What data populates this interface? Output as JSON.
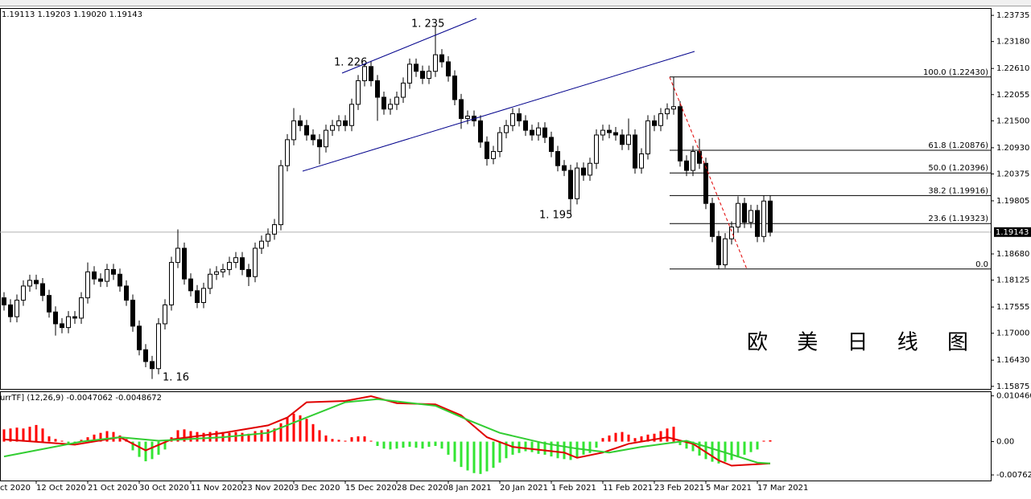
{
  "chart_data": [
    {
      "type": "candlestick",
      "ohlc_text": "1.19113 1.19203 1.19020 1.19143",
      "title": "欧 美 日 线 图",
      "annotations": [
        "1. 235",
        "1. 226",
        "1. 195",
        "1. 16"
      ],
      "up_color": "#ffffff",
      "down_color": "#000000",
      "open": [
        1.1775,
        1.176,
        1.1735,
        1.177,
        1.18,
        1.1812,
        1.1805,
        1.178,
        1.1745,
        1.172,
        1.1712,
        1.1735,
        1.1732,
        1.1775,
        1.183,
        1.1815,
        1.181,
        1.1835,
        1.1825,
        1.18,
        1.177,
        1.1715,
        1.1665,
        1.164,
        1.1625,
        1.172,
        1.176,
        1.185,
        1.188,
        1.1815,
        1.179,
        1.1765,
        1.1795,
        1.1825,
        1.183,
        1.1835,
        1.185,
        1.186,
        1.1835,
        1.182,
        1.188,
        1.1895,
        1.191,
        1.193,
        1.2055,
        1.211,
        1.215,
        1.214,
        1.212,
        1.211,
        1.2095,
        1.213,
        1.214,
        1.215,
        1.214,
        1.2185,
        1.2235,
        1.2265,
        1.2235,
        1.22,
        1.2175,
        1.2185,
        1.22,
        1.223,
        1.227,
        1.2255,
        1.224,
        1.2255,
        1.229,
        1.2275,
        1.2245,
        1.2195,
        1.2155,
        1.216,
        1.215,
        1.2105,
        1.207,
        1.2085,
        1.2125,
        1.214,
        1.2165,
        1.215,
        1.213,
        1.212,
        1.2135,
        1.2115,
        1.2085,
        1.2055,
        1.2045,
        1.1985,
        1.205,
        1.2035,
        1.206,
        1.212,
        1.213,
        1.2125,
        1.212,
        1.21,
        1.212,
        1.205,
        1.208,
        1.215,
        1.214,
        1.2165,
        1.2175,
        1.218,
        1.2065,
        1.2045,
        1.2085,
        1.206,
        1.1975,
        1.1905,
        1.1845,
        1.19,
        1.1925,
        1.1975,
        1.1935,
        1.196,
        1.1905,
        1.198
      ],
      "high": [
        1.1787,
        1.1772,
        1.1782,
        1.1812,
        1.1824,
        1.1824,
        1.1817,
        1.1792,
        1.1757,
        1.1732,
        1.1747,
        1.1747,
        1.1787,
        1.185,
        1.1842,
        1.1827,
        1.1847,
        1.1847,
        1.1837,
        1.1812,
        1.1782,
        1.1727,
        1.1677,
        1.1652,
        1.1732,
        1.1772,
        1.1862,
        1.192,
        1.1892,
        1.1827,
        1.1802,
        1.1807,
        1.1837,
        1.1842,
        1.1847,
        1.1862,
        1.1872,
        1.1872,
        1.1847,
        1.1892,
        1.1907,
        1.1922,
        1.1942,
        1.2067,
        1.2122,
        1.2177,
        1.2162,
        1.2152,
        1.2132,
        1.2122,
        1.2142,
        1.2152,
        1.2162,
        1.2162,
        1.2197,
        1.2247,
        1.227,
        1.2277,
        1.2247,
        1.2212,
        1.2197,
        1.2212,
        1.2242,
        1.2282,
        1.2282,
        1.2267,
        1.2267,
        1.235,
        1.2302,
        1.2287,
        1.2257,
        1.2207,
        1.2172,
        1.2172,
        1.2162,
        1.2117,
        1.2097,
        1.2137,
        1.2152,
        1.2177,
        1.2177,
        1.2162,
        1.2142,
        1.2147,
        1.2147,
        1.2127,
        1.2097,
        1.2067,
        1.2057,
        1.2062,
        1.2062,
        1.2072,
        1.2132,
        1.2142,
        1.2142,
        1.2137,
        1.2132,
        1.2155,
        1.2132,
        1.2092,
        1.2162,
        1.2162,
        1.2177,
        1.2187,
        1.2243,
        1.2192,
        1.2077,
        1.2097,
        1.2112,
        1.2072,
        1.1987,
        1.1917,
        1.1912,
        1.1937,
        1.199,
        1.1987,
        1.1972,
        1.1972,
        1.1992,
        1.1992
      ],
      "low": [
        1.1748,
        1.1723,
        1.1723,
        1.1758,
        1.1788,
        1.1793,
        1.1768,
        1.1733,
        1.1695,
        1.17,
        1.17,
        1.172,
        1.172,
        1.1763,
        1.1803,
        1.1798,
        1.1798,
        1.1813,
        1.1788,
        1.1758,
        1.1703,
        1.1653,
        1.1628,
        1.1603,
        1.1613,
        1.1708,
        1.1748,
        1.1838,
        1.1803,
        1.1778,
        1.1753,
        1.1753,
        1.1783,
        1.1813,
        1.1818,
        1.1823,
        1.1838,
        1.1823,
        1.18,
        1.1808,
        1.1868,
        1.1883,
        1.1898,
        1.1918,
        1.2043,
        1.2098,
        1.2128,
        1.2108,
        1.2098,
        1.2058,
        1.2083,
        1.2118,
        1.2128,
        1.2128,
        1.2128,
        1.2173,
        1.2223,
        1.2223,
        1.215,
        1.2163,
        1.2163,
        1.2173,
        1.2188,
        1.2218,
        1.2243,
        1.2228,
        1.2228,
        1.2243,
        1.2263,
        1.2233,
        1.2183,
        1.2133,
        1.2143,
        1.2138,
        1.2093,
        1.2055,
        1.2058,
        1.2073,
        1.2113,
        1.2128,
        1.2138,
        1.2118,
        1.2108,
        1.2108,
        1.2103,
        1.2073,
        1.2043,
        1.2033,
        1.1952,
        1.1973,
        1.2023,
        1.2023,
        1.2048,
        1.2108,
        1.2113,
        1.2108,
        1.2088,
        1.2088,
        1.2038,
        1.2038,
        1.2068,
        1.2128,
        1.2128,
        1.2153,
        1.2163,
        1.2053,
        1.2033,
        1.2033,
        1.2048,
        1.1963,
        1.1893,
        1.1836,
        1.1838,
        1.1888,
        1.1913,
        1.1923,
        1.1923,
        1.1893,
        1.1893,
        1.1905
      ],
      "close": [
        1.176,
        1.1735,
        1.177,
        1.18,
        1.1812,
        1.1805,
        1.178,
        1.1745,
        1.172,
        1.1712,
        1.1735,
        1.1732,
        1.1775,
        1.183,
        1.1815,
        1.181,
        1.1835,
        1.1825,
        1.18,
        1.177,
        1.1715,
        1.1665,
        1.164,
        1.1625,
        1.172,
        1.176,
        1.185,
        1.188,
        1.1815,
        1.179,
        1.1765,
        1.1795,
        1.1825,
        1.183,
        1.1835,
        1.185,
        1.186,
        1.1835,
        1.182,
        1.188,
        1.1895,
        1.191,
        1.193,
        1.2055,
        1.211,
        1.215,
        1.214,
        1.212,
        1.211,
        1.2095,
        1.213,
        1.214,
        1.215,
        1.214,
        1.2185,
        1.2235,
        1.2265,
        1.2235,
        1.22,
        1.2175,
        1.2185,
        1.22,
        1.223,
        1.227,
        1.2255,
        1.224,
        1.2255,
        1.229,
        1.2275,
        1.2245,
        1.2195,
        1.2155,
        1.216,
        1.215,
        1.2105,
        1.207,
        1.2085,
        1.2125,
        1.214,
        1.2165,
        1.215,
        1.213,
        1.212,
        1.2135,
        1.2115,
        1.2085,
        1.2055,
        1.2045,
        1.1985,
        1.205,
        1.2035,
        1.206,
        1.212,
        1.213,
        1.2125,
        1.212,
        1.21,
        1.212,
        1.205,
        1.208,
        1.215,
        1.214,
        1.2165,
        1.2175,
        1.218,
        1.2065,
        1.2045,
        1.2085,
        1.206,
        1.1975,
        1.1905,
        1.1845,
        1.19,
        1.1925,
        1.1975,
        1.1935,
        1.196,
        1.1905,
        1.198,
        1.1914
      ],
      "current_price": 1.19143,
      "xlim": [
        -0.625,
        153.25
      ],
      "xticks": [
        {
          "value": -3,
          "label": "ct 2020"
        },
        {
          "value": 5,
          "label": "12 Oct 2020"
        },
        {
          "value": 13,
          "label": "21 Oct 2020"
        },
        {
          "value": 21,
          "label": "30 Oct 2020"
        },
        {
          "value": 29,
          "label": "11 Nov 2020"
        },
        {
          "value": 37,
          "label": "23 Nov 2020"
        },
        {
          "value": 45,
          "label": "3 Dec 2020"
        },
        {
          "value": 53,
          "label": "15 Dec 2020"
        },
        {
          "value": 61,
          "label": "28 Dec 2020"
        },
        {
          "value": 69,
          "label": "8 Jan 2021"
        },
        {
          "value": 77,
          "label": "20 Jan 2021"
        },
        {
          "value": 85,
          "label": "1 Feb 2021"
        },
        {
          "value": 93,
          "label": "11 Feb 2021"
        },
        {
          "value": 101,
          "label": "23 Feb 2021"
        },
        {
          "value": 109,
          "label": "5 Mar 2021"
        },
        {
          "value": 117,
          "label": "17 Mar 2021"
        }
      ],
      "ylim": [
        1.1582,
        1.2389
      ],
      "yticks": [
        1.23735,
        {
          "value": 1.2318,
          "label": "1.23180"
        },
        {
          "value": 1.2261,
          "label": "1.22610"
        },
        1.22055,
        {
          "value": 1.215,
          "label": "1.21500"
        },
        {
          "value": 1.2093,
          "label": "1.20930"
        },
        1.20375,
        1.19805,
        {
          "value": 1.1868,
          "label": "1.18680"
        },
        1.18125,
        1.17555,
        {
          "value": 1.17,
          "label": "1.17000"
        },
        {
          "value": 1.1643,
          "label": "1.16430"
        },
        1.15875
      ],
      "fib_levels": [
        {
          "label": "100.0  (1.22430)",
          "value": 1.2243
        },
        {
          "label": "61.8  (1.20876)",
          "value": 1.20876
        },
        {
          "label": "50.0  (1.20396)",
          "value": 1.20396
        },
        {
          "label": "38.2  (1.19916)",
          "value": 1.19916
        },
        {
          "label": "23.6  (1.19323)",
          "value": 1.19323
        },
        {
          "label": "0.0",
          "value": 1.1836
        }
      ]
    },
    {
      "type": "macd",
      "label": "urrTF] (12,26,9) -0.0047062 -0.0048672",
      "up_color": "#ff0000",
      "down_color": "#33e533",
      "values": [
        0.0028,
        0.003,
        0.0032,
        0.003,
        0.0034,
        0.0038,
        0.003,
        0.0012,
        0.0006,
        0.0002,
        -0.0004,
        -0.0003,
        0.0004,
        0.001,
        0.0016,
        0.002,
        0.0024,
        0.0022,
        0.0014,
        0.0006,
        -0.002,
        -0.0035,
        -0.0045,
        -0.004,
        -0.003,
        -0.0018,
        0.001,
        0.0026,
        0.0028,
        0.0024,
        0.0022,
        0.002,
        0.0022,
        0.0024,
        0.0022,
        0.002,
        0.0022,
        0.002,
        0.0018,
        0.0024,
        0.0026,
        0.0028,
        0.003,
        0.0042,
        0.0056,
        0.0064,
        0.006,
        0.0052,
        0.004,
        0.0026,
        0.0014,
        0.0006,
        0.0004,
        0.0002,
        0.001,
        0.0012,
        0.0012,
        0.0002,
        -0.001,
        -0.0016,
        -0.0018,
        -0.0016,
        -0.0014,
        -0.0012,
        -0.0014,
        -0.0016,
        -0.0012,
        -0.001,
        -0.0016,
        -0.003,
        -0.0046,
        -0.0058,
        -0.0066,
        -0.0072,
        -0.0074,
        -0.0068,
        -0.006,
        -0.0048,
        -0.0038,
        -0.003,
        -0.0026,
        -0.0022,
        -0.0024,
        -0.0028,
        -0.003,
        -0.0034,
        -0.0038,
        -0.004,
        -0.0042,
        -0.0036,
        -0.003,
        -0.0026,
        -0.0014,
        0.0008,
        0.0014,
        0.002,
        0.0022,
        0.0016,
        0.0008,
        0.0012,
        0.0016,
        0.0018,
        0.0024,
        0.003,
        0.0034,
        -0.0008,
        -0.0016,
        -0.0022,
        -0.0032,
        -0.004,
        -0.0046,
        -0.005,
        -0.0046,
        -0.0042,
        -0.0036,
        -0.003,
        -0.0024,
        -0.0018,
        0.0002,
        0.0003
      ],
      "series": [
        {
          "color": "#e00000",
          "x": [
            0,
            11,
            18,
            22,
            26,
            34,
            41,
            44,
            47,
            53,
            57,
            61,
            67,
            71,
            75,
            79,
            87,
            89,
            93,
            97,
            103,
            107,
            111,
            113,
            119
          ],
          "values": [
            0.0005,
            -0.0007,
            0.001,
            -0.002,
            0.0005,
            0.002,
            0.0037,
            0.0055,
            0.009,
            0.0093,
            0.0104,
            0.0088,
            0.0085,
            0.006,
            0.001,
            -0.0012,
            -0.0025,
            -0.0037,
            -0.0025,
            -0.0005,
            0.001,
            -0.0005,
            -0.0043,
            -0.0055,
            -0.005
          ]
        },
        {
          "color": "#32cd32",
          "x": [
            0,
            12,
            18,
            24,
            34,
            41,
            47,
            53,
            58,
            67,
            72,
            77,
            84,
            89,
            94,
            99,
            106,
            112,
            117,
            119
          ],
          "values": [
            -0.0034,
            0.0,
            0.001,
            0.0002,
            0.001,
            0.002,
            0.0055,
            0.009,
            0.0097,
            0.0082,
            0.005,
            0.002,
            -0.0004,
            -0.0016,
            -0.0025,
            -0.0012,
            0.0002,
            -0.0025,
            -0.0048,
            -0.005
          ]
        }
      ],
      "ylim": [
        -0.0089,
        0.0115
      ],
      "yticks": [
        {
          "value": 0.01046,
          "label": "0.010460"
        },
        {
          "value": 0,
          "label": "0.00"
        },
        {
          "value": -0.007621,
          "label": "-0.007621"
        }
      ]
    }
  ]
}
